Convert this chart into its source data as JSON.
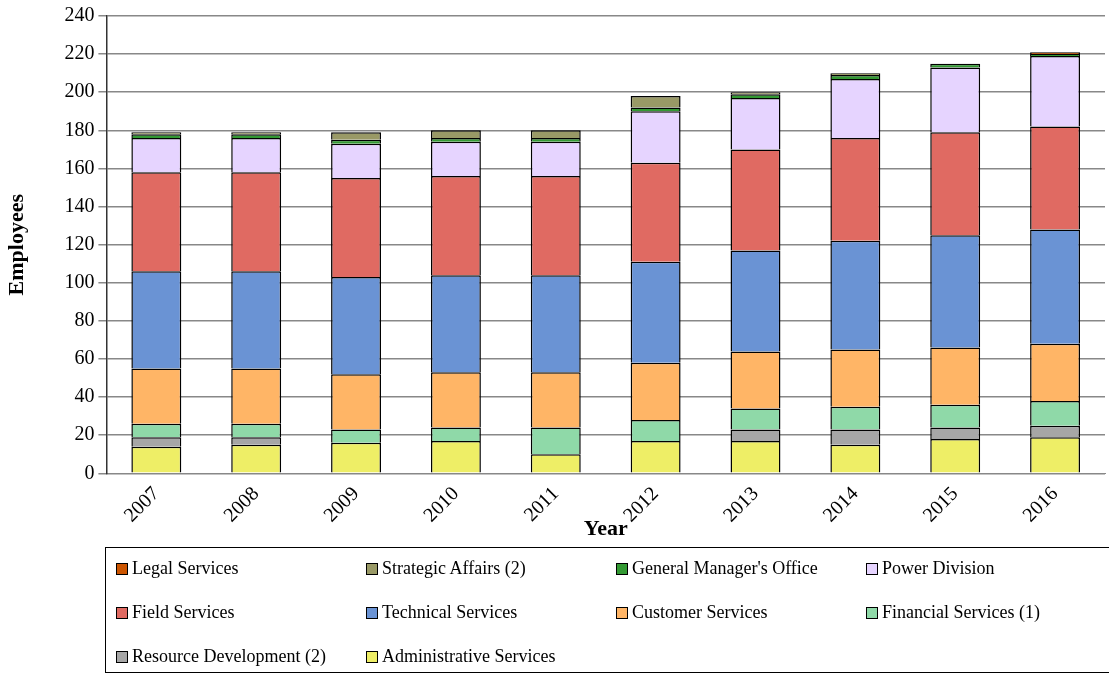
{
  "chart_data": {
    "type": "bar",
    "stacked": true,
    "xlabel": "Year",
    "ylabel": "Employees",
    "categories": [
      "2007",
      "2008",
      "2009",
      "2010",
      "2011",
      "2012",
      "2013",
      "2014",
      "2015",
      "2016"
    ],
    "ylim": [
      0,
      240
    ],
    "yticks": [
      0,
      20,
      40,
      60,
      80,
      100,
      120,
      140,
      160,
      180,
      200,
      220,
      240
    ],
    "grid": "y",
    "legend": "bottom",
    "series": [
      {
        "name": "Administrative Services",
        "color": "#eeee66",
        "values": [
          14,
          15,
          16,
          17,
          10,
          17,
          17,
          15,
          18,
          19
        ]
      },
      {
        "name": "Resource Development (2)",
        "color": "#a6a6a6",
        "values": [
          5,
          4,
          0,
          0,
          0,
          0,
          6,
          8,
          6,
          6
        ]
      },
      {
        "name": "Financial Services (1)",
        "color": "#8fd9a8",
        "values": [
          7,
          7,
          7,
          7,
          14,
          11,
          11,
          12,
          12,
          13
        ]
      },
      {
        "name": "Customer Services",
        "color": "#ffb566",
        "values": [
          29,
          29,
          29,
          29,
          29,
          30,
          30,
          30,
          30,
          30
        ]
      },
      {
        "name": "Technical Services",
        "color": "#6a93d4",
        "values": [
          51,
          51,
          51,
          51,
          51,
          53,
          53,
          57,
          59,
          60
        ]
      },
      {
        "name": "Field Services",
        "color": "#e06a62",
        "values": [
          52,
          52,
          52,
          52,
          52,
          52,
          53,
          54,
          54,
          54
        ]
      },
      {
        "name": "Power Division",
        "color": "#e6d4ff",
        "values": [
          18,
          18,
          18,
          18,
          18,
          27,
          27,
          31,
          34,
          37
        ]
      },
      {
        "name": "General Manager's Office",
        "color": "#339933",
        "values": [
          2,
          2,
          2,
          2,
          2,
          2,
          2,
          2,
          2,
          1
        ]
      },
      {
        "name": "Strategic Affairs (2)",
        "color": "#999966",
        "values": [
          1,
          1,
          4,
          4,
          4,
          6,
          1,
          1,
          0,
          0
        ]
      },
      {
        "name": "Legal Services",
        "color": "#cc5500",
        "values": [
          0,
          0,
          0,
          0,
          0,
          0,
          0,
          0,
          0,
          1
        ]
      }
    ]
  }
}
